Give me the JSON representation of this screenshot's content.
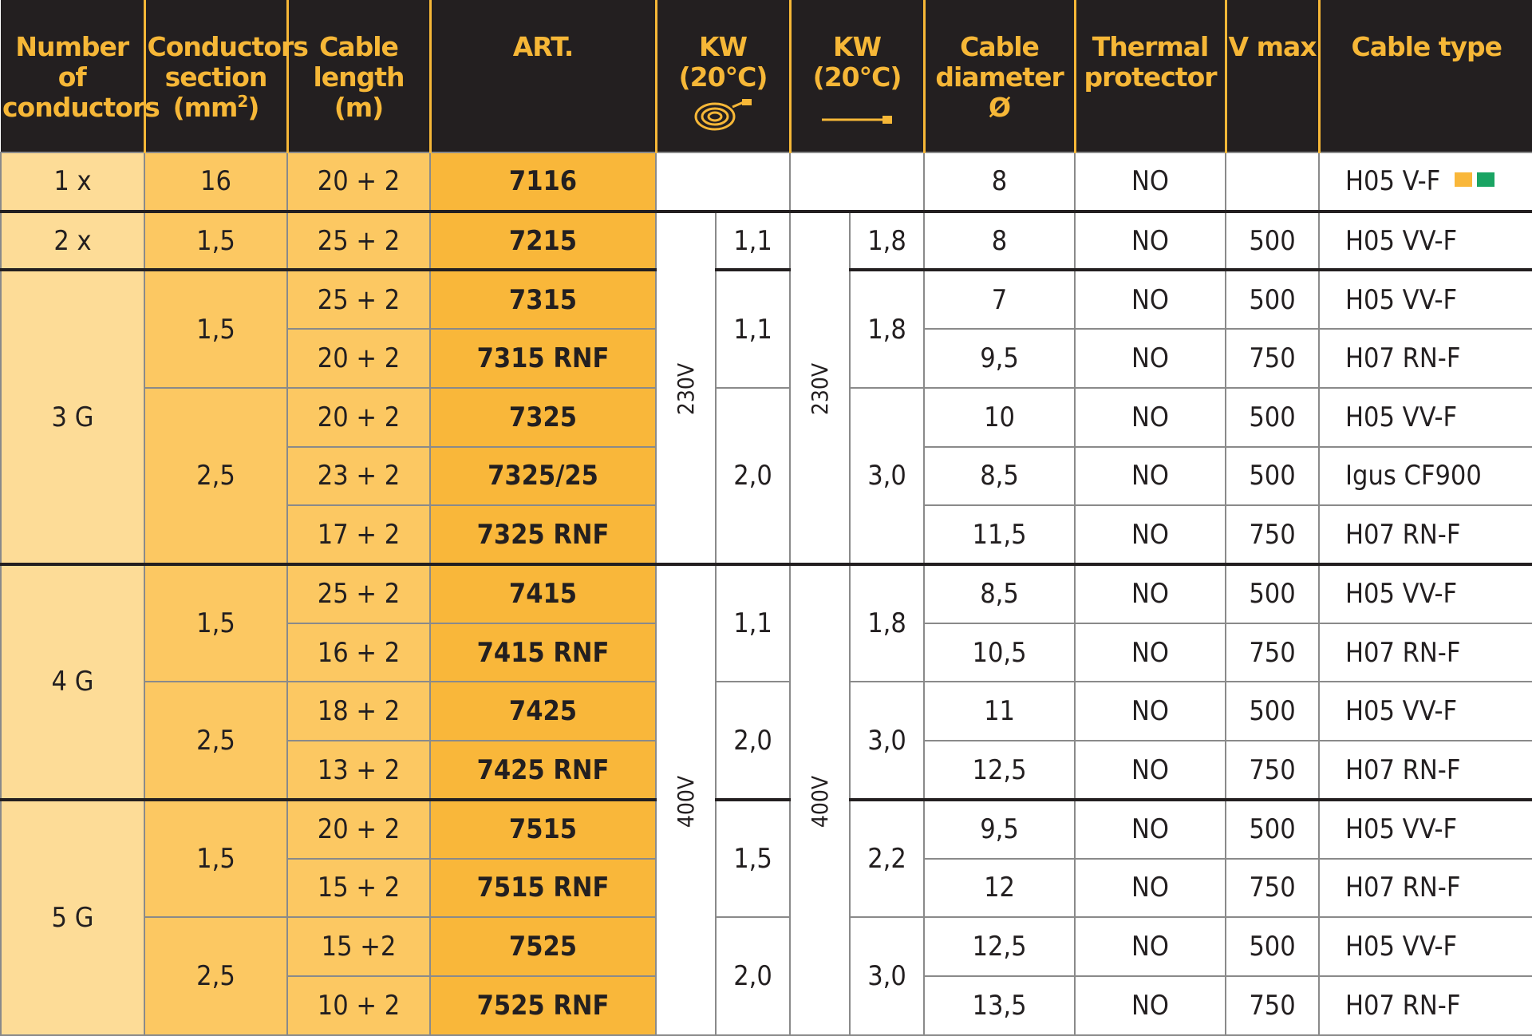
{
  "headers": {
    "conductors": "Number of conductors",
    "section": "Conductors section (mm",
    "section_sup": "2",
    "section_end": ")",
    "length": "Cable length (m)",
    "art": "ART.",
    "kw_coiled": "KW (20°C)",
    "kw_uncoiled": "KW (20°C)",
    "diameter": "Cable diameter Ø",
    "thermal": "Thermal protector",
    "vmax": "V max",
    "type": "Cable type"
  },
  "voltages": {
    "v230": "230V",
    "v400": "400V"
  },
  "colors": {
    "header_bg": "#231f20",
    "header_text": "#f6b737",
    "swatch_orange": "#f9b73a",
    "swatch_green": "#1aa463"
  },
  "rows": [
    {
      "conductors": "1 x",
      "section": "16",
      "length": "20 + 2",
      "art": "7116",
      "kw1": "",
      "kw2": "",
      "diameter": "8",
      "thermal": "NO",
      "vmax": "",
      "type": "H05 V-F"
    },
    {
      "conductors": "2 x",
      "section": "1,5",
      "length": "25 + 2",
      "art": "7215",
      "kw1": "1,1",
      "kw2": "1,8",
      "diameter": "8",
      "thermal": "NO",
      "vmax": "500",
      "type": "H05 VV-F"
    },
    {
      "conductors": "3 G",
      "section": "1,5",
      "length": "25 + 2",
      "art": "7315",
      "kw1": "1,1",
      "kw2": "1,8",
      "diameter": "7",
      "thermal": "NO",
      "vmax": "500",
      "type": "H05 VV-F"
    },
    {
      "length": "20 + 2",
      "art": "7315 RNF",
      "diameter": "9,5",
      "thermal": "NO",
      "vmax": "750",
      "type": "H07 RN-F"
    },
    {
      "section": "2,5",
      "length": "20 + 2",
      "art": "7325",
      "kw1": "2,0",
      "kw2": "3,0",
      "diameter": "10",
      "thermal": "NO",
      "vmax": "500",
      "type": "H05 VV-F"
    },
    {
      "length": "23 + 2",
      "art": "7325/25",
      "diameter": "8,5",
      "thermal": "NO",
      "vmax": "500",
      "type": "Igus CF900"
    },
    {
      "length": "17 + 2",
      "art": "7325 RNF",
      "diameter": "11,5",
      "thermal": "NO",
      "vmax": "750",
      "type": "H07 RN-F"
    },
    {
      "conductors": "4 G",
      "section": "1,5",
      "length": "25 + 2",
      "art": "7415",
      "kw1": "1,1",
      "kw2": "1,8",
      "diameter": "8,5",
      "thermal": "NO",
      "vmax": "500",
      "type": "H05 VV-F"
    },
    {
      "length": "16 + 2",
      "art": "7415 RNF",
      "diameter": "10,5",
      "thermal": "NO",
      "vmax": "750",
      "type": "H07 RN-F"
    },
    {
      "section": "2,5",
      "length": "18 + 2",
      "art": "7425",
      "kw1": "2,0",
      "kw2": "3,0",
      "diameter": "11",
      "thermal": "NO",
      "vmax": "500",
      "type": "H05 VV-F"
    },
    {
      "length": "13 + 2",
      "art": "7425 RNF",
      "diameter": "12,5",
      "thermal": "NO",
      "vmax": "750",
      "type": "H07 RN-F"
    },
    {
      "conductors": "5 G",
      "section": "1,5",
      "length": "20 + 2",
      "art": "7515",
      "kw1": "1,5",
      "kw2": "2,2",
      "diameter": "9,5",
      "thermal": "NO",
      "vmax": "500",
      "type": "H05 VV-F"
    },
    {
      "length": "15 + 2",
      "art": "7515 RNF",
      "diameter": "12",
      "thermal": "NO",
      "vmax": "750",
      "type": "H07 RN-F"
    },
    {
      "section": "2,5",
      "length": "15 +2",
      "art": "7525",
      "kw1": "2,0",
      "kw2": "3,0",
      "diameter": "12,5",
      "thermal": "NO",
      "vmax": "500",
      "type": "H05 VV-F"
    },
    {
      "length": "10 + 2",
      "art": "7525 RNF",
      "diameter": "13,5",
      "thermal": "NO",
      "vmax": "750",
      "type": "H07 RN-F"
    }
  ]
}
